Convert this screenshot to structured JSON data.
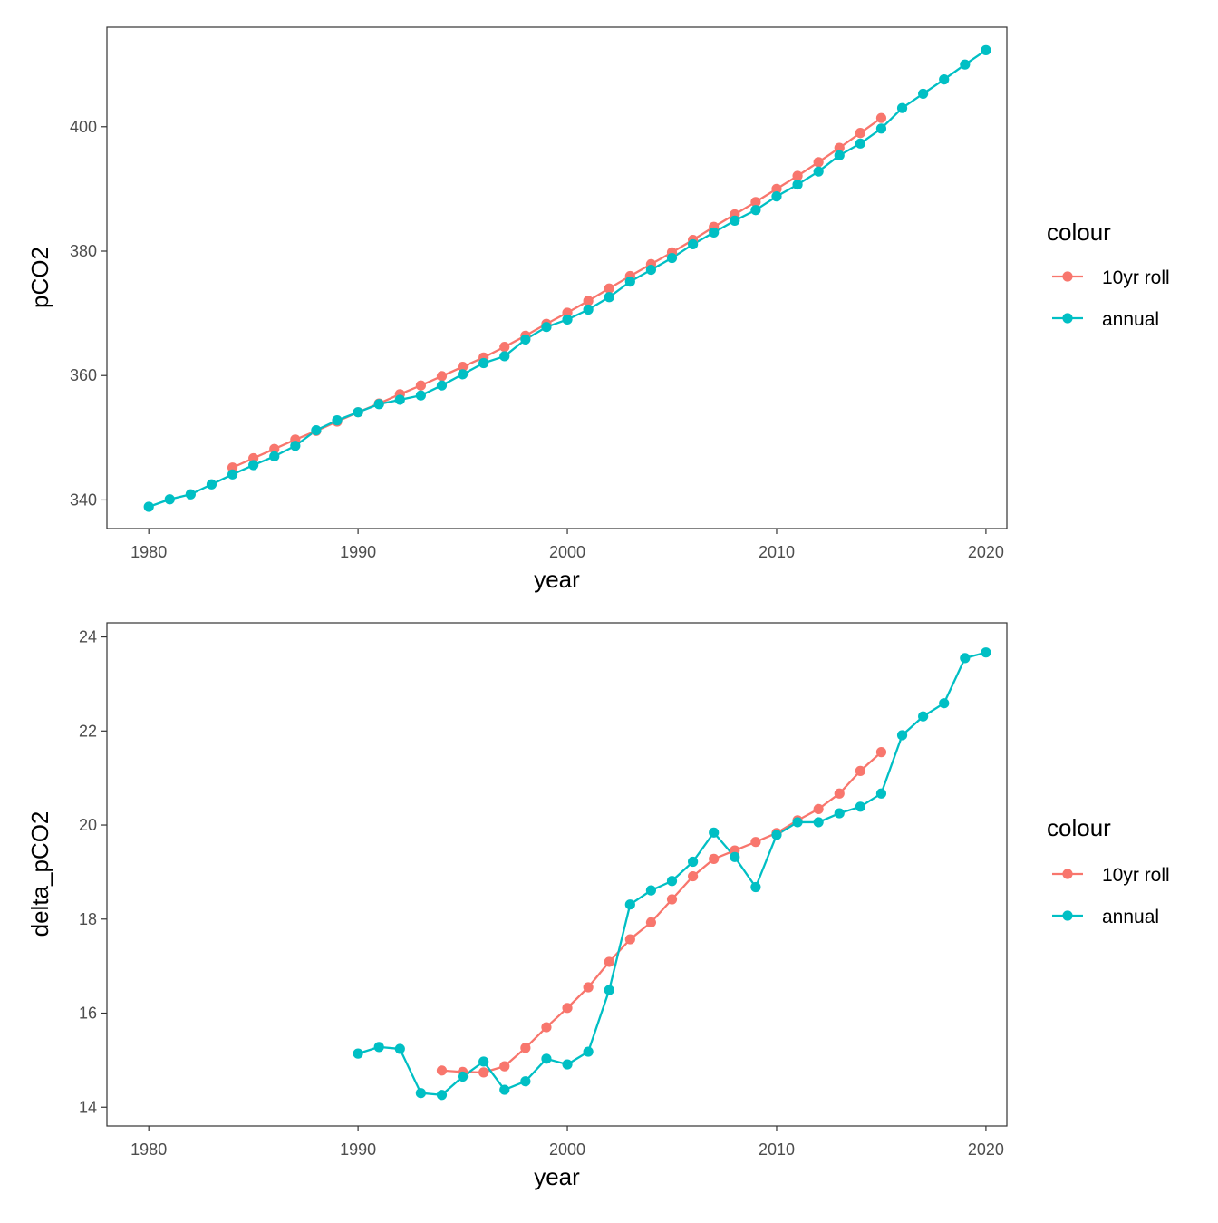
{
  "colors": {
    "roll": "#F8766D",
    "annual": "#00BFC4",
    "panel_border": "#333333",
    "tick": "#333333"
  },
  "chart_data": [
    {
      "type": "line",
      "xlabel": "year",
      "ylabel": "pCO2",
      "xlim": [
        1978,
        2021
      ],
      "ylim": [
        335.4,
        416.0
      ],
      "xticks": [
        1980,
        1990,
        2000,
        2010,
        2020
      ],
      "xtick_labels": [
        "1980",
        "1990",
        "2000",
        "2010",
        "2020"
      ],
      "yticks": [
        340,
        360,
        380,
        400
      ],
      "ytick_labels": [
        "340",
        "360",
        "380",
        "400"
      ],
      "grid": false,
      "legend": {
        "title": "colour",
        "position": "right",
        "entries": [
          "10yr roll",
          "annual"
        ]
      },
      "series": [
        {
          "name": "10yr roll",
          "color_key": "roll",
          "x": [
            1984,
            1985,
            1986,
            1987,
            1988,
            1989,
            1990,
            1991,
            1992,
            1993,
            1994,
            1995,
            1996,
            1997,
            1998,
            1999,
            2000,
            2001,
            2002,
            2003,
            2004,
            2005,
            2006,
            2007,
            2008,
            2009,
            2010,
            2011,
            2012,
            2013,
            2014,
            2015
          ],
          "y": [
            345.2,
            346.7,
            348.2,
            349.7,
            351.1,
            352.6,
            354.1,
            355.5,
            357.0,
            358.4,
            359.9,
            361.4,
            362.9,
            364.6,
            366.4,
            368.3,
            370.1,
            372.0,
            374.0,
            376.0,
            377.9,
            379.8,
            381.8,
            383.9,
            385.9,
            387.9,
            390.0,
            392.1,
            394.3,
            396.6,
            399.0,
            401.4
          ]
        },
        {
          "name": "annual",
          "color_key": "annual",
          "x": [
            1980,
            1981,
            1982,
            1983,
            1984,
            1985,
            1986,
            1987,
            1988,
            1989,
            1990,
            1991,
            1992,
            1993,
            1994,
            1995,
            1996,
            1997,
            1998,
            1999,
            2000,
            2001,
            2002,
            2003,
            2004,
            2005,
            2006,
            2007,
            2008,
            2009,
            2010,
            2011,
            2012,
            2013,
            2014,
            2015,
            2016,
            2017,
            2018,
            2019,
            2020
          ],
          "y": [
            338.9,
            340.1,
            340.9,
            342.5,
            344.1,
            345.6,
            347.0,
            348.7,
            351.2,
            352.8,
            354.1,
            355.4,
            356.1,
            356.8,
            358.4,
            360.2,
            362.0,
            363.1,
            365.8,
            367.8,
            369.0,
            370.6,
            372.6,
            375.1,
            377.0,
            378.9,
            381.1,
            383.0,
            384.9,
            386.6,
            388.8,
            390.7,
            392.8,
            395.4,
            397.3,
            399.7,
            403.0,
            405.3,
            407.6,
            410.0,
            412.3
          ]
        }
      ]
    },
    {
      "type": "line",
      "xlabel": "year",
      "ylabel": "delta_pCO2",
      "xlim": [
        1978,
        2021
      ],
      "ylim": [
        13.6,
        24.3
      ],
      "xticks": [
        1980,
        1990,
        2000,
        2010,
        2020
      ],
      "xtick_labels": [
        "1980",
        "1990",
        "2000",
        "2010",
        "2020"
      ],
      "yticks": [
        14,
        16,
        18,
        20,
        22,
        24
      ],
      "ytick_labels": [
        "14",
        "16",
        "18",
        "20",
        "22",
        "24"
      ],
      "grid": false,
      "legend": {
        "title": "colour",
        "position": "right",
        "entries": [
          "10yr roll",
          "annual"
        ]
      },
      "series": [
        {
          "name": "10yr roll",
          "color_key": "roll",
          "x": [
            1994,
            1995,
            1996,
            1997,
            1998,
            1999,
            2000,
            2001,
            2002,
            2003,
            2004,
            2005,
            2006,
            2007,
            2008,
            2009,
            2010,
            2011,
            2012,
            2013,
            2014,
            2015
          ],
          "y": [
            14.78,
            14.75,
            14.74,
            14.87,
            15.26,
            15.7,
            16.11,
            16.55,
            17.09,
            17.57,
            17.93,
            18.42,
            18.91,
            19.28,
            19.46,
            19.64,
            19.83,
            20.1,
            20.34,
            20.67,
            21.15,
            21.55
          ]
        },
        {
          "name": "annual",
          "color_key": "annual",
          "x": [
            1990,
            1991,
            1992,
            1993,
            1994,
            1995,
            1996,
            1997,
            1998,
            1999,
            2000,
            2001,
            2002,
            2003,
            2004,
            2005,
            2006,
            2007,
            2008,
            2009,
            2010,
            2011,
            2012,
            2013,
            2014,
            2015,
            2016,
            2017,
            2018,
            2019,
            2020
          ],
          "y": [
            15.14,
            15.28,
            15.24,
            14.3,
            14.26,
            14.65,
            14.97,
            14.37,
            14.55,
            15.03,
            14.91,
            15.18,
            16.49,
            18.31,
            18.61,
            18.81,
            19.22,
            19.84,
            19.32,
            18.68,
            19.79,
            20.06,
            20.06,
            20.25,
            20.39,
            20.67,
            21.91,
            22.31,
            22.59,
            23.55,
            23.67
          ]
        }
      ]
    }
  ]
}
